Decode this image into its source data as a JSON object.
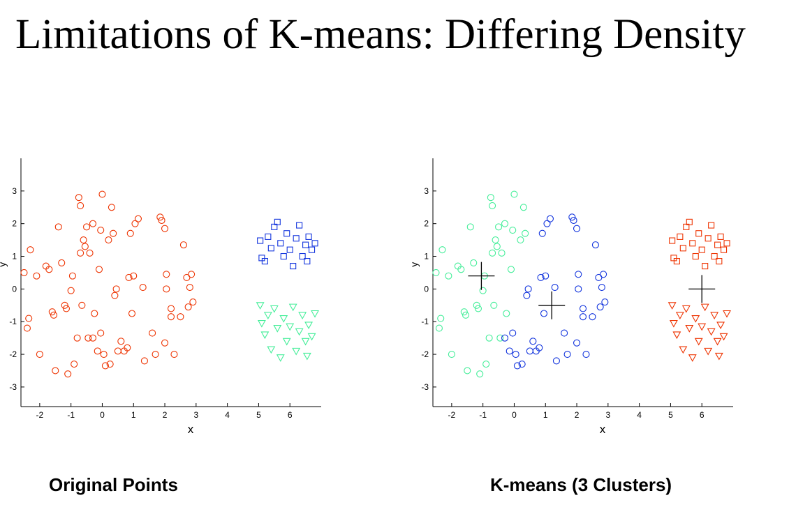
{
  "slide": {
    "title": "Limitations of K-means: Differing Density",
    "captions": [
      "Original Points",
      "K-means (3 Clusters)"
    ]
  },
  "colors": {
    "red": "#ee3300",
    "blue": "#1133dd",
    "green": "#44ee99",
    "centroid": "#000000"
  },
  "chart_data": [
    {
      "type": "scatter",
      "xlabel": "x",
      "ylabel": "y",
      "xlim": [
        -2.6,
        7.0
      ],
      "ylim": [
        -3.6,
        4.0
      ],
      "xticks": [
        -2,
        -1,
        0,
        1,
        2,
        3,
        4,
        5,
        6
      ],
      "yticks": [
        -3,
        -2,
        -1,
        0,
        1,
        2,
        3
      ],
      "series": [
        {
          "marker": "circle",
          "color": "#ee3300",
          "points": [
            [
              -2.5,
              0.5
            ],
            [
              -2.3,
              1.2
            ],
            [
              -2.4,
              -1.2
            ],
            [
              -2.35,
              -0.9
            ],
            [
              -2.1,
              0.4
            ],
            [
              -2.0,
              -2.0
            ],
            [
              -1.8,
              0.7
            ],
            [
              -1.7,
              0.6
            ],
            [
              -1.6,
              -0.7
            ],
            [
              -1.55,
              -0.8
            ],
            [
              -1.5,
              -2.5
            ],
            [
              -1.4,
              1.9
            ],
            [
              -1.3,
              0.8
            ],
            [
              -1.2,
              -0.5
            ],
            [
              -1.15,
              -0.6
            ],
            [
              -1.1,
              -2.6
            ],
            [
              -1.0,
              -0.05
            ],
            [
              -0.95,
              0.4
            ],
            [
              -0.9,
              -2.3
            ],
            [
              -0.8,
              -1.5
            ],
            [
              -0.75,
              2.8
            ],
            [
              -0.7,
              2.55
            ],
            [
              -0.7,
              1.1
            ],
            [
              -0.65,
              -0.5
            ],
            [
              -0.6,
              1.5
            ],
            [
              -0.55,
              1.3
            ],
            [
              -0.5,
              1.9
            ],
            [
              -0.45,
              -1.5
            ],
            [
              -0.4,
              1.1
            ],
            [
              -0.3,
              -1.5
            ],
            [
              -0.3,
              2.0
            ],
            [
              -0.25,
              -0.75
            ],
            [
              -0.15,
              -1.9
            ],
            [
              -0.1,
              0.6
            ],
            [
              -0.05,
              1.8
            ],
            [
              -0.05,
              -1.35
            ],
            [
              0.0,
              2.9
            ],
            [
              0.05,
              -2.0
            ],
            [
              0.1,
              -2.35
            ],
            [
              0.2,
              1.5
            ],
            [
              0.25,
              -2.3
            ],
            [
              0.3,
              2.5
            ],
            [
              0.35,
              1.7
            ],
            [
              0.4,
              -0.2
            ],
            [
              0.45,
              0.0
            ],
            [
              0.5,
              -1.9
            ],
            [
              0.6,
              -1.6
            ],
            [
              0.7,
              -1.9
            ],
            [
              0.8,
              -1.8
            ],
            [
              0.85,
              0.35
            ],
            [
              0.9,
              1.7
            ],
            [
              0.95,
              -0.75
            ],
            [
              1.0,
              0.4
            ],
            [
              1.05,
              2.0
            ],
            [
              1.15,
              2.15
            ],
            [
              1.3,
              0.05
            ],
            [
              1.35,
              -2.2
            ],
            [
              1.6,
              -1.35
            ],
            [
              1.7,
              -2.0
            ],
            [
              1.85,
              2.2
            ],
            [
              1.9,
              2.1
            ],
            [
              2.0,
              1.85
            ],
            [
              2.0,
              -1.65
            ],
            [
              2.05,
              0.45
            ],
            [
              2.05,
              0.0
            ],
            [
              2.2,
              -0.6
            ],
            [
              2.2,
              -0.85
            ],
            [
              2.3,
              -2.0
            ],
            [
              2.5,
              -0.85
            ],
            [
              2.6,
              1.35
            ],
            [
              2.7,
              0.35
            ],
            [
              2.75,
              -0.55
            ],
            [
              2.8,
              0.05
            ],
            [
              2.85,
              0.45
            ],
            [
              2.9,
              -0.4
            ]
          ]
        },
        {
          "marker": "square",
          "color": "#1133dd",
          "points": [
            [
              5.05,
              1.48
            ],
            [
              5.1,
              0.95
            ],
            [
              5.2,
              0.85
            ],
            [
              5.3,
              1.6
            ],
            [
              5.4,
              1.25
            ],
            [
              5.5,
              1.9
            ],
            [
              5.6,
              2.05
            ],
            [
              5.7,
              1.4
            ],
            [
              5.8,
              1.0
            ],
            [
              5.9,
              1.7
            ],
            [
              6.0,
              1.2
            ],
            [
              6.1,
              0.7
            ],
            [
              6.2,
              1.55
            ],
            [
              6.3,
              1.95
            ],
            [
              6.4,
              1.0
            ],
            [
              6.5,
              1.35
            ],
            [
              6.55,
              0.85
            ],
            [
              6.6,
              1.6
            ],
            [
              6.7,
              1.2
            ],
            [
              6.8,
              1.4
            ]
          ]
        },
        {
          "marker": "triangle",
          "color": "#44ee99",
          "points": [
            [
              5.05,
              -0.5
            ],
            [
              5.1,
              -1.05
            ],
            [
              5.2,
              -1.4
            ],
            [
              5.3,
              -0.8
            ],
            [
              5.4,
              -1.85
            ],
            [
              5.5,
              -0.6
            ],
            [
              5.6,
              -1.2
            ],
            [
              5.7,
              -2.1
            ],
            [
              5.8,
              -0.9
            ],
            [
              5.9,
              -1.6
            ],
            [
              6.0,
              -1.15
            ],
            [
              6.1,
              -0.55
            ],
            [
              6.2,
              -1.9
            ],
            [
              6.3,
              -1.3
            ],
            [
              6.4,
              -0.8
            ],
            [
              6.5,
              -1.6
            ],
            [
              6.55,
              -2.05
            ],
            [
              6.6,
              -1.1
            ],
            [
              6.7,
              -1.45
            ],
            [
              6.8,
              -0.75
            ]
          ]
        }
      ]
    },
    {
      "type": "scatter",
      "xlabel": "x",
      "ylabel": "y",
      "xlim": [
        -2.6,
        7.0
      ],
      "ylim": [
        -3.6,
        4.0
      ],
      "xticks": [
        -2,
        -1,
        0,
        1,
        2,
        3,
        4,
        5,
        6
      ],
      "yticks": [
        -3,
        -2,
        -1,
        0,
        1,
        2,
        3
      ],
      "centroids": [
        [
          -1.05,
          0.4
        ],
        [
          1.2,
          -0.5
        ],
        [
          6.0,
          0.0
        ]
      ],
      "series": [
        {
          "marker": "circle",
          "color": "#44ee99",
          "points": [
            [
              -2.5,
              0.5
            ],
            [
              -2.3,
              1.2
            ],
            [
              -2.4,
              -1.2
            ],
            [
              -2.35,
              -0.9
            ],
            [
              -2.1,
              0.4
            ],
            [
              -2.0,
              -2.0
            ],
            [
              -1.8,
              0.7
            ],
            [
              -1.7,
              0.6
            ],
            [
              -1.6,
              -0.7
            ],
            [
              -1.55,
              -0.8
            ],
            [
              -1.5,
              -2.5
            ],
            [
              -1.4,
              1.9
            ],
            [
              -1.3,
              0.8
            ],
            [
              -1.2,
              -0.5
            ],
            [
              -1.15,
              -0.6
            ],
            [
              -1.1,
              -2.6
            ],
            [
              -1.0,
              -0.05
            ],
            [
              -0.95,
              0.4
            ],
            [
              -0.9,
              -2.3
            ],
            [
              -0.8,
              -1.5
            ],
            [
              -0.75,
              2.8
            ],
            [
              -0.7,
              2.55
            ],
            [
              -0.7,
              1.1
            ],
            [
              -0.65,
              -0.5
            ],
            [
              -0.6,
              1.5
            ],
            [
              -0.55,
              1.3
            ],
            [
              -0.5,
              1.9
            ],
            [
              -0.45,
              -1.5
            ],
            [
              -0.4,
              1.1
            ],
            [
              -0.3,
              2.0
            ],
            [
              -0.25,
              -0.75
            ],
            [
              -0.1,
              0.6
            ],
            [
              -0.05,
              1.8
            ],
            [
              0.0,
              2.9
            ],
            [
              0.2,
              1.5
            ],
            [
              0.3,
              2.5
            ],
            [
              0.35,
              1.7
            ]
          ]
        },
        {
          "marker": "circle",
          "color": "#1133dd",
          "points": [
            [
              -0.3,
              -1.5
            ],
            [
              -0.15,
              -1.9
            ],
            [
              -0.05,
              -1.35
            ],
            [
              0.05,
              -2.0
            ],
            [
              0.1,
              -2.35
            ],
            [
              0.25,
              -2.3
            ],
            [
              0.4,
              -0.2
            ],
            [
              0.45,
              0.0
            ],
            [
              0.5,
              -1.9
            ],
            [
              0.6,
              -1.6
            ],
            [
              0.7,
              -1.9
            ],
            [
              0.8,
              -1.8
            ],
            [
              0.85,
              0.35
            ],
            [
              0.9,
              1.7
            ],
            [
              0.95,
              -0.75
            ],
            [
              1.0,
              0.4
            ],
            [
              1.05,
              2.0
            ],
            [
              1.15,
              2.15
            ],
            [
              1.3,
              0.05
            ],
            [
              1.35,
              -2.2
            ],
            [
              1.6,
              -1.35
            ],
            [
              1.7,
              -2.0
            ],
            [
              1.85,
              2.2
            ],
            [
              1.9,
              2.1
            ],
            [
              2.0,
              1.85
            ],
            [
              2.0,
              -1.65
            ],
            [
              2.05,
              0.45
            ],
            [
              2.05,
              0.0
            ],
            [
              2.2,
              -0.6
            ],
            [
              2.2,
              -0.85
            ],
            [
              2.3,
              -2.0
            ],
            [
              2.5,
              -0.85
            ],
            [
              2.6,
              1.35
            ],
            [
              2.7,
              0.35
            ],
            [
              2.75,
              -0.55
            ],
            [
              2.8,
              0.05
            ],
            [
              2.85,
              0.45
            ],
            [
              2.9,
              -0.4
            ]
          ]
        },
        {
          "marker": "square",
          "color": "#ee3300",
          "points": [
            [
              5.05,
              1.48
            ],
            [
              5.1,
              0.95
            ],
            [
              5.2,
              0.85
            ],
            [
              5.3,
              1.6
            ],
            [
              5.4,
              1.25
            ],
            [
              5.5,
              1.9
            ],
            [
              5.6,
              2.05
            ],
            [
              5.7,
              1.4
            ],
            [
              5.8,
              1.0
            ],
            [
              5.9,
              1.7
            ],
            [
              6.0,
              1.2
            ],
            [
              6.1,
              0.7
            ],
            [
              6.2,
              1.55
            ],
            [
              6.3,
              1.95
            ],
            [
              6.4,
              1.0
            ],
            [
              6.5,
              1.35
            ],
            [
              6.55,
              0.85
            ],
            [
              6.6,
              1.6
            ],
            [
              6.7,
              1.2
            ],
            [
              6.8,
              1.4
            ]
          ]
        },
        {
          "marker": "triangle",
          "color": "#ee3300",
          "points": [
            [
              5.05,
              -0.5
            ],
            [
              5.1,
              -1.05
            ],
            [
              5.2,
              -1.4
            ],
            [
              5.3,
              -0.8
            ],
            [
              5.4,
              -1.85
            ],
            [
              5.5,
              -0.6
            ],
            [
              5.6,
              -1.2
            ],
            [
              5.7,
              -2.1
            ],
            [
              5.8,
              -0.9
            ],
            [
              5.9,
              -1.6
            ],
            [
              6.0,
              -1.15
            ],
            [
              6.1,
              -0.55
            ],
            [
              6.2,
              -1.9
            ],
            [
              6.3,
              -1.3
            ],
            [
              6.4,
              -0.8
            ],
            [
              6.5,
              -1.6
            ],
            [
              6.55,
              -2.05
            ],
            [
              6.6,
              -1.1
            ],
            [
              6.7,
              -1.45
            ],
            [
              6.8,
              -0.75
            ]
          ]
        }
      ]
    }
  ]
}
